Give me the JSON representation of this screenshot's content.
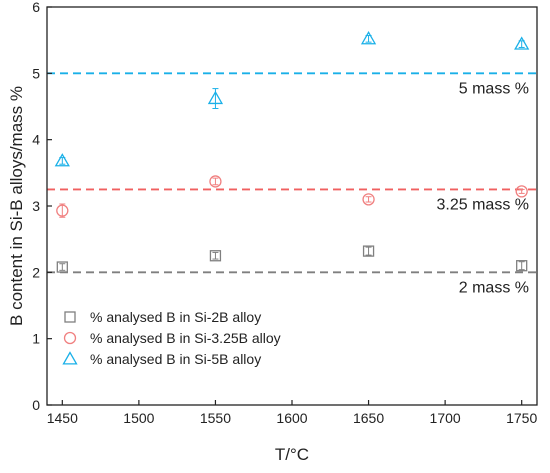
{
  "chart_data": {
    "type": "scatter",
    "xlabel": "T/°C",
    "ylabel": "B content in Si-B alloys/mass %",
    "xlim": [
      1440,
      1760
    ],
    "ylim": [
      0,
      6
    ],
    "xticks": [
      1450,
      1500,
      1550,
      1600,
      1650,
      1700,
      1750
    ],
    "yticks": [
      0,
      1,
      2,
      3,
      4,
      5,
      6
    ],
    "grid": false,
    "legend_position": "bottom-left",
    "series": [
      {
        "name": "% analysed B in Si-2B alloy",
        "marker": "square",
        "color": "#7f7f7f",
        "x": [
          1450,
          1550,
          1650,
          1750
        ],
        "y": [
          2.08,
          2.25,
          2.32,
          2.1
        ],
        "err": [
          0.05,
          0.05,
          0.06,
          0.06
        ]
      },
      {
        "name": "% analysed B in Si-3.25B alloy",
        "marker": "circle",
        "color": "#f08080",
        "x": [
          1450,
          1550,
          1650,
          1750
        ],
        "y": [
          2.93,
          3.37,
          3.1,
          3.22
        ],
        "err": [
          0.1,
          0.05,
          0.04,
          0.03
        ]
      },
      {
        "name": "% analysed B in Si-5B alloy",
        "marker": "triangle",
        "color": "#1ab0e8",
        "x": [
          1450,
          1550,
          1650,
          1750
        ],
        "y": [
          3.68,
          4.62,
          5.52,
          5.44
        ],
        "err": [
          0.05,
          0.15,
          0.05,
          0.05
        ]
      }
    ],
    "reference_lines": [
      {
        "y": 5,
        "label": "5 mass %",
        "color": "#1ab0e8"
      },
      {
        "y": 3.25,
        "label": "3.25 mass %",
        "color": "#f06060"
      },
      {
        "y": 2,
        "label": "2 mass %",
        "color": "#7f7f7f"
      }
    ]
  }
}
